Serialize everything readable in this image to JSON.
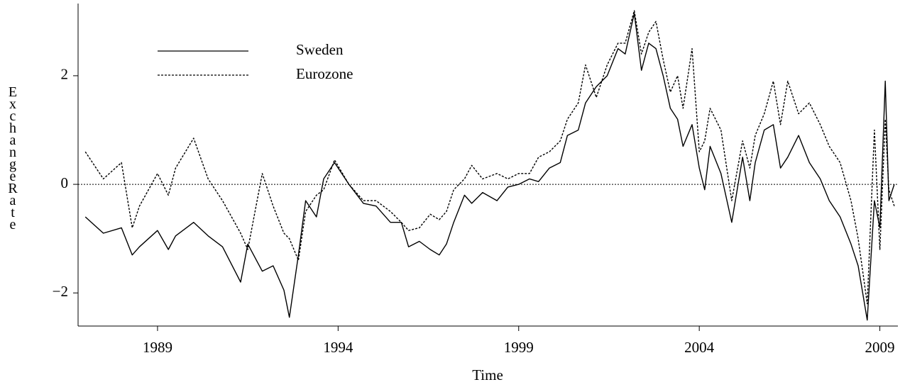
{
  "chart_data": {
    "type": "line",
    "xlabel": "Time",
    "ylabel": "Exchange Rate",
    "x": [
      1987.0,
      1987.5,
      1988.0,
      1988.3,
      1988.5,
      1989.0,
      1989.3,
      1989.5,
      1990.0,
      1990.4,
      1990.8,
      1991.3,
      1991.5,
      1991.9,
      1992.2,
      1992.5,
      1992.65,
      1992.9,
      1993.1,
      1993.4,
      1993.6,
      1993.9,
      1994.3,
      1994.7,
      1995.05,
      1995.45,
      1995.75,
      1995.95,
      1996.25,
      1996.55,
      1996.8,
      1997.0,
      1997.2,
      1997.5,
      1997.7,
      1998.0,
      1998.4,
      1998.7,
      1999.0,
      1999.3,
      1999.55,
      1999.85,
      2000.15,
      2000.35,
      2000.65,
      2000.85,
      2001.15,
      2001.45,
      2001.75,
      2001.95,
      2002.2,
      2002.4,
      2002.6,
      2002.8,
      2003.0,
      2003.2,
      2003.4,
      2003.55,
      2003.8,
      2004.0,
      2004.15,
      2004.3,
      2004.6,
      2004.9,
      2005.2,
      2005.4,
      2005.55,
      2005.8,
      2006.05,
      2006.25,
      2006.45,
      2006.75,
      2007.05,
      2007.35,
      2007.6,
      2007.9,
      2008.2,
      2008.4,
      2008.65,
      2008.85,
      2009.0,
      2009.15,
      2009.25,
      2009.4
    ],
    "series": [
      {
        "name": "Sweden",
        "color": "#000000",
        "style": "solid",
        "values": [
          -0.6,
          -0.9,
          -0.8,
          -1.3,
          -1.15,
          -0.85,
          -1.2,
          -0.95,
          -0.7,
          -0.95,
          -1.15,
          -1.8,
          -1.1,
          -1.6,
          -1.5,
          -1.95,
          -2.45,
          -1.3,
          -0.3,
          -0.6,
          0.1,
          0.4,
          0.0,
          -0.35,
          -0.4,
          -0.7,
          -0.7,
          -1.15,
          -1.05,
          -1.2,
          -1.3,
          -1.1,
          -0.7,
          -0.2,
          -0.35,
          -0.15,
          -0.3,
          -0.05,
          0.0,
          0.1,
          0.05,
          0.3,
          0.4,
          0.9,
          1.0,
          1.5,
          1.8,
          2.0,
          2.5,
          2.4,
          3.15,
          2.1,
          2.6,
          2.5,
          2.0,
          1.4,
          1.2,
          0.7,
          1.1,
          0.3,
          -0.1,
          0.7,
          0.2,
          -0.7,
          0.5,
          -0.3,
          0.4,
          1.0,
          1.1,
          0.3,
          0.5,
          0.9,
          0.4,
          0.1,
          -0.3,
          -0.6,
          -1.1,
          -1.5,
          -2.5,
          -0.3,
          -0.8,
          1.9,
          -0.3,
          0.0
        ]
      },
      {
        "name": "Eurozone",
        "color": "#000000",
        "style": "dashed",
        "values": [
          0.6,
          0.1,
          0.4,
          -0.8,
          -0.4,
          0.2,
          -0.2,
          0.3,
          0.85,
          0.1,
          -0.3,
          -0.9,
          -1.2,
          0.2,
          -0.4,
          -0.9,
          -1.0,
          -1.4,
          -0.5,
          -0.2,
          -0.1,
          0.45,
          0.0,
          -0.3,
          -0.3,
          -0.5,
          -0.7,
          -0.85,
          -0.8,
          -0.55,
          -0.65,
          -0.5,
          -0.1,
          0.1,
          0.35,
          0.1,
          0.2,
          0.1,
          0.2,
          0.2,
          0.5,
          0.6,
          0.8,
          1.2,
          1.5,
          2.2,
          1.6,
          2.2,
          2.6,
          2.6,
          3.2,
          2.4,
          2.8,
          3.0,
          2.3,
          1.7,
          2.0,
          1.4,
          2.5,
          0.6,
          0.8,
          1.4,
          1.0,
          -0.3,
          0.8,
          0.3,
          0.9,
          1.3,
          1.9,
          1.1,
          1.9,
          1.3,
          1.5,
          1.1,
          0.7,
          0.4,
          -0.3,
          -1.0,
          -2.2,
          1.0,
          -1.2,
          1.2,
          -0.1,
          -0.4
        ]
      }
    ],
    "xlim": [
      1986.8,
      2009.5
    ],
    "xticks": [
      1989,
      1994,
      1999,
      2004,
      2009
    ],
    "ylim": [
      -2.61,
      3.33
    ],
    "yticks": [
      {
        "value": -2,
        "label": "−2"
      },
      0,
      2
    ],
    "hline": 0,
    "legend": "upper-left"
  }
}
